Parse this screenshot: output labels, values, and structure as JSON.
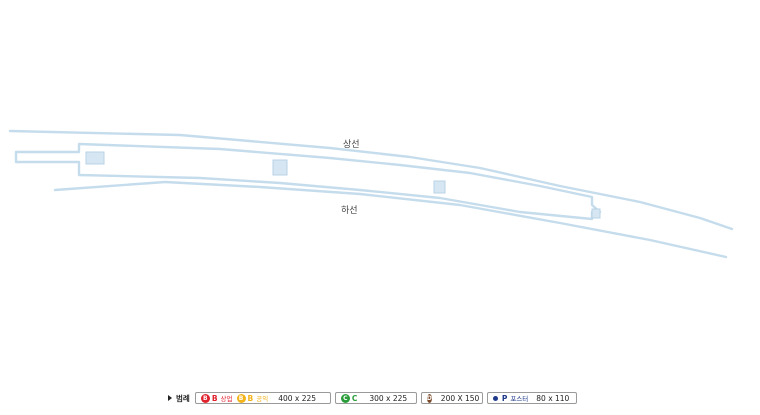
{
  "tracks": {
    "upper_label": "상선",
    "lower_label": "하선"
  },
  "legend": {
    "title": "범례",
    "items": [
      {
        "key": "b",
        "badge": "B",
        "badge_color": "#e0222c",
        "code": "B",
        "code_color": "#e0222c",
        "sub": "상업",
        "sub_color": "#e0222c",
        "badge2": "B",
        "badge2_color": "#f3b31a",
        "code2": "B",
        "code2_color": "#f3b31a",
        "sub2": "공익",
        "sub2_color": "#f3b31a",
        "size": "400 x 225"
      },
      {
        "key": "c",
        "badge": "C",
        "badge_color": "#2a9d3a",
        "code": "C",
        "code_color": "#2a9d3a",
        "size": "300 x 225"
      },
      {
        "key": "d",
        "badge": "D",
        "badge_color": "#7a4a2a",
        "size": "200 X 150"
      },
      {
        "key": "p",
        "dot_color": "#1f3a8a",
        "code": "P",
        "code_color": "#1f3a8a",
        "sub": "포스터",
        "sub_color": "#1f3a8a",
        "size": "80 x 110"
      }
    ]
  },
  "colors": {
    "track": "#c5dcec",
    "platform_fill": "#ffffff",
    "ad_fill": "#d6e7f3"
  }
}
